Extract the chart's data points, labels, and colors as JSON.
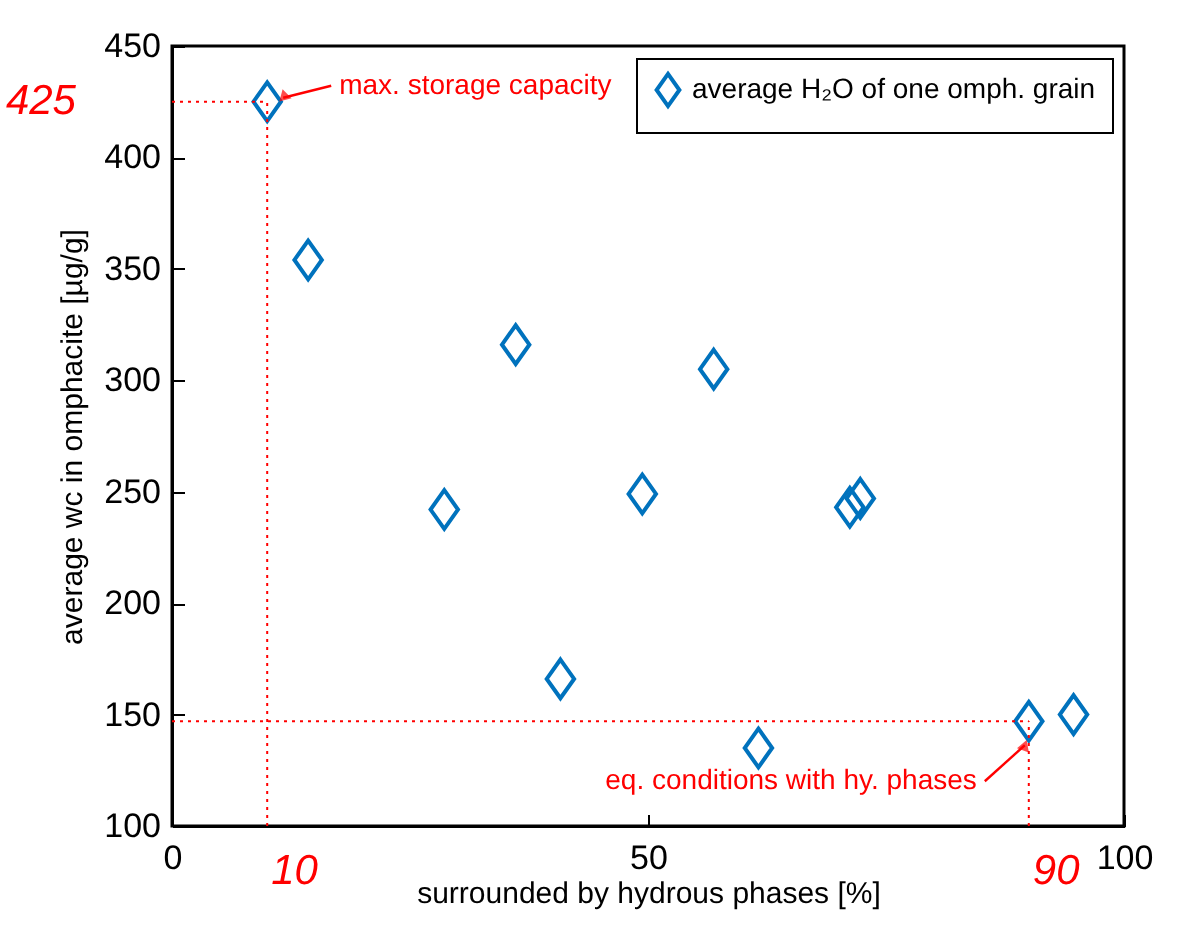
{
  "chart_data": {
    "type": "scatter",
    "xlabel": "surrounded by hydrous phases [%]",
    "ylabel": "average wc in omphacite [µg/g]",
    "xlim": [
      0,
      100
    ],
    "xticks": [
      0,
      50,
      100
    ],
    "ylim": [
      100,
      450
    ],
    "yticks": [
      100,
      150,
      200,
      250,
      300,
      350,
      400,
      450
    ],
    "grid": false,
    "legend": "top right",
    "marker": "diamond",
    "series": [
      {
        "name": "average H₂O of one omph. grain",
        "color": "#0072bd",
        "x": [
          10,
          14.3,
          28.6,
          36.1,
          40.8,
          49.4,
          56.9,
          61.6,
          71.2,
          72.3,
          90,
          94.7
        ],
        "values": [
          425,
          354,
          242,
          316,
          166,
          249,
          305,
          135,
          243,
          247,
          147,
          150
        ]
      }
    ],
    "ref_lines": [
      {
        "axis": "x",
        "value": 10,
        "label": "10",
        "color": "#ff0000",
        "line_style": "dotted"
      },
      {
        "axis": "y",
        "value": 425,
        "label": "425",
        "color": "#ff0000",
        "line_style": "dotted"
      },
      {
        "axis": "x",
        "value": 90,
        "label": "90",
        "color": "#ff0000",
        "line_style": "dotted"
      },
      {
        "axis": "y",
        "value": 147,
        "label": null,
        "color": "#ff0000",
        "line_style": "dotted"
      }
    ],
    "annotations": [
      {
        "text": "max. storage capacity",
        "x": 10,
        "y": 425
      },
      {
        "text": "eq. conditions with hy. phases",
        "x": 90,
        "y": 147
      }
    ]
  }
}
